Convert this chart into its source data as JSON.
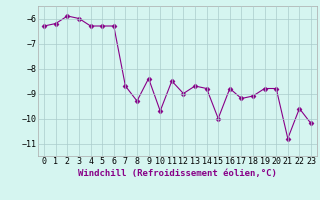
{
  "x": [
    0,
    1,
    2,
    3,
    4,
    5,
    6,
    7,
    8,
    9,
    10,
    11,
    12,
    13,
    14,
    15,
    16,
    17,
    18,
    19,
    20,
    21,
    22,
    23
  ],
  "y": [
    -6.3,
    -6.2,
    -5.9,
    -6.0,
    -6.3,
    -6.3,
    -6.3,
    -8.7,
    -9.3,
    -8.4,
    -9.7,
    -8.5,
    -9.0,
    -8.7,
    -8.8,
    -10.0,
    -8.8,
    -9.2,
    -9.1,
    -8.8,
    -8.8,
    -10.8,
    -9.6,
    -10.2
  ],
  "line_color": "#880088",
  "marker": "D",
  "marker_size": 2.5,
  "bg_color": "#d5f5f0",
  "grid_color": "#aacccc",
  "xlabel": "Windchill (Refroidissement éolien,°C)",
  "ylabel": "",
  "ylim": [
    -11.5,
    -5.5
  ],
  "yticks": [
    -6,
    -7,
    -8,
    -9,
    -10,
    -11
  ],
  "xlim": [
    -0.5,
    23.5
  ],
  "xlabel_fontsize": 6.5,
  "tick_fontsize": 6.0,
  "title": ""
}
